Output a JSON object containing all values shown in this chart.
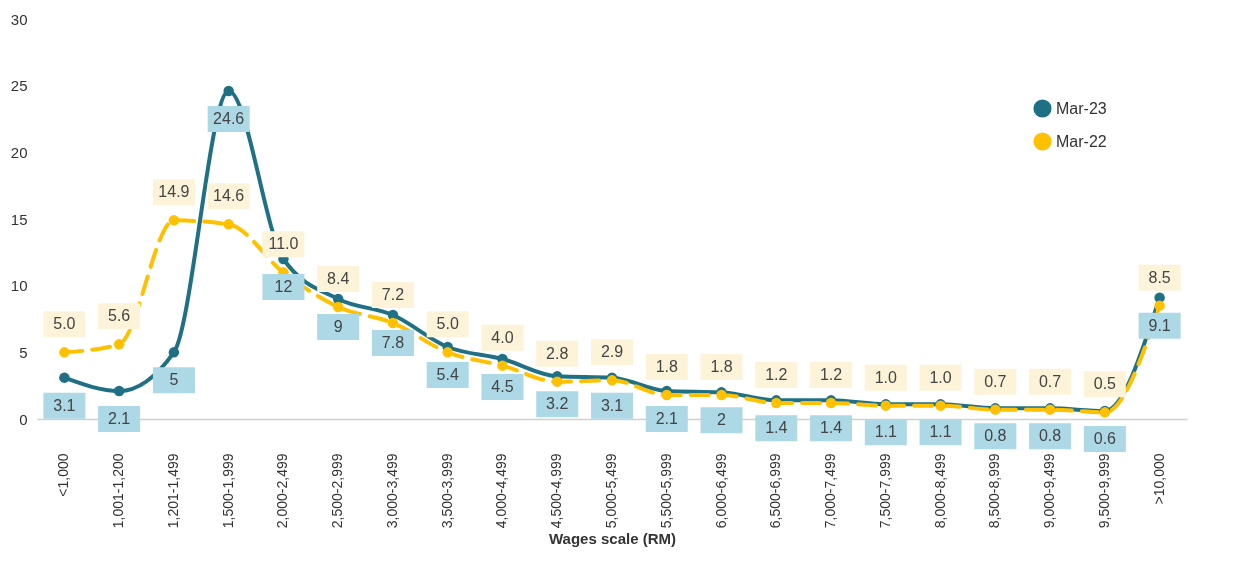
{
  "chart_data": {
    "type": "line",
    "xlabel": "Wages scale (RM)",
    "categories": [
      "<1,000",
      "1,001-1,200",
      "1,201-1,499",
      "1,500-1,999",
      "2,000-2,499",
      "2,500-2,999",
      "3,000-3,499",
      "3,500-3,999",
      "4,000-4,499",
      "4,500-4,999",
      "5,000-5,499",
      "5,500-5,999",
      "6,000-6,499",
      "6,500-6,999",
      "7,000-7,499",
      "7,500-7,999",
      "8,000-8,499",
      "8,500-8,999",
      "9,000-9,499",
      "9,500-9,999",
      ">10,000"
    ],
    "series": [
      {
        "name": "Mar-23",
        "color": "#1f7085",
        "line_style": "solid",
        "values": [
          3.1,
          2.1,
          5,
          24.6,
          12,
          9,
          7.8,
          5.4,
          4.5,
          3.2,
          3.1,
          2.1,
          2,
          1.4,
          1.4,
          1.1,
          1.1,
          0.8,
          0.8,
          0.6,
          9.1
        ],
        "value_labels": [
          "3.1",
          "2.1",
          "5",
          "24.6",
          "12",
          "9",
          "7.8",
          "5.4",
          "4.5",
          "3.2",
          "3.1",
          "2.1",
          "2",
          "1.4",
          "1.4",
          "1.1",
          "1.1",
          "0.8",
          "0.8",
          "0.6",
          "9.1"
        ]
      },
      {
        "name": "Mar-22",
        "color": "#ffc000",
        "line_style": "dashed",
        "values": [
          5.0,
          5.6,
          14.9,
          14.6,
          11.0,
          8.4,
          7.2,
          5.0,
          4.0,
          2.8,
          2.9,
          1.8,
          1.8,
          1.2,
          1.2,
          1.0,
          1.0,
          0.7,
          0.7,
          0.5,
          8.5
        ],
        "value_labels": [
          "5.0",
          "5.6",
          "14.9",
          "14.6",
          "11.0",
          "8.4",
          "7.2",
          "5.0",
          "4.0",
          "2.8",
          "2.9",
          "1.8",
          "1.8",
          "1.2",
          "1.2",
          "1.0",
          "1.0",
          "0.7",
          "0.7",
          "0.5",
          "8.5"
        ]
      }
    ],
    "ylim": [
      0,
      30
    ],
    "yticks": [
      0,
      5,
      10,
      15,
      20,
      25,
      30
    ],
    "grid": false,
    "legend": "top right",
    "marker": "circle"
  }
}
